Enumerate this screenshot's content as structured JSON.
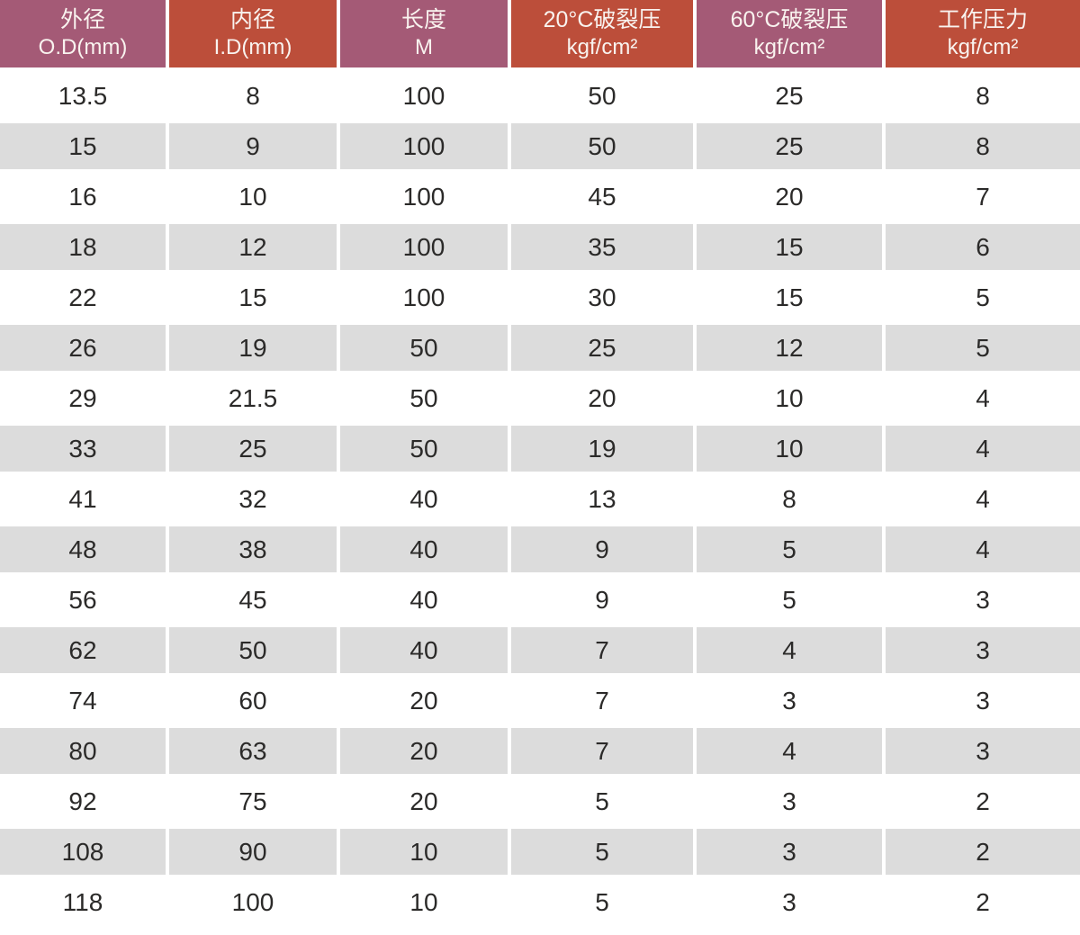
{
  "colors": {
    "header_mauve": "#a45a76",
    "header_red": "#bc4e3a",
    "header_text": "#f9f3ef",
    "row_alt_background": "#dcdcdc",
    "row_background": "#ffffff",
    "cell_text": "#2b2a29"
  },
  "table": {
    "columns": [
      {
        "title": "外径",
        "sub": "O.D(mm)",
        "theme": "mauve"
      },
      {
        "title": "内径",
        "sub": "I.D(mm)",
        "theme": "red"
      },
      {
        "title": "长度",
        "sub": "M",
        "theme": "mauve"
      },
      {
        "title": "20°C破裂压",
        "sub": "kgf/cm²",
        "theme": "red"
      },
      {
        "title": "60°C破裂压",
        "sub": "kgf/cm²",
        "theme": "mauve"
      },
      {
        "title": "工作压力",
        "sub": "kgf/cm²",
        "theme": "red"
      }
    ],
    "rows": [
      [
        "13.5",
        "8",
        "100",
        "50",
        "25",
        "8"
      ],
      [
        "15",
        "9",
        "100",
        "50",
        "25",
        "8"
      ],
      [
        "16",
        "10",
        "100",
        "45",
        "20",
        "7"
      ],
      [
        "18",
        "12",
        "100",
        "35",
        "15",
        "6"
      ],
      [
        "22",
        "15",
        "100",
        "30",
        "15",
        "5"
      ],
      [
        "26",
        "19",
        "50",
        "25",
        "12",
        "5"
      ],
      [
        "29",
        "21.5",
        "50",
        "20",
        "10",
        "4"
      ],
      [
        "33",
        "25",
        "50",
        "19",
        "10",
        "4"
      ],
      [
        "41",
        "32",
        "40",
        "13",
        "8",
        "4"
      ],
      [
        "48",
        "38",
        "40",
        "9",
        "5",
        "4"
      ],
      [
        "56",
        "45",
        "40",
        "9",
        "5",
        "3"
      ],
      [
        "62",
        "50",
        "40",
        "7",
        "4",
        "3"
      ],
      [
        "74",
        "60",
        "20",
        "7",
        "3",
        "3"
      ],
      [
        "80",
        "63",
        "20",
        "7",
        "4",
        "3"
      ],
      [
        "92",
        "75",
        "20",
        "5",
        "3",
        "2"
      ],
      [
        "108",
        "90",
        "10",
        "5",
        "3",
        "2"
      ],
      [
        "118",
        "100",
        "10",
        "5",
        "3",
        "2"
      ]
    ]
  }
}
